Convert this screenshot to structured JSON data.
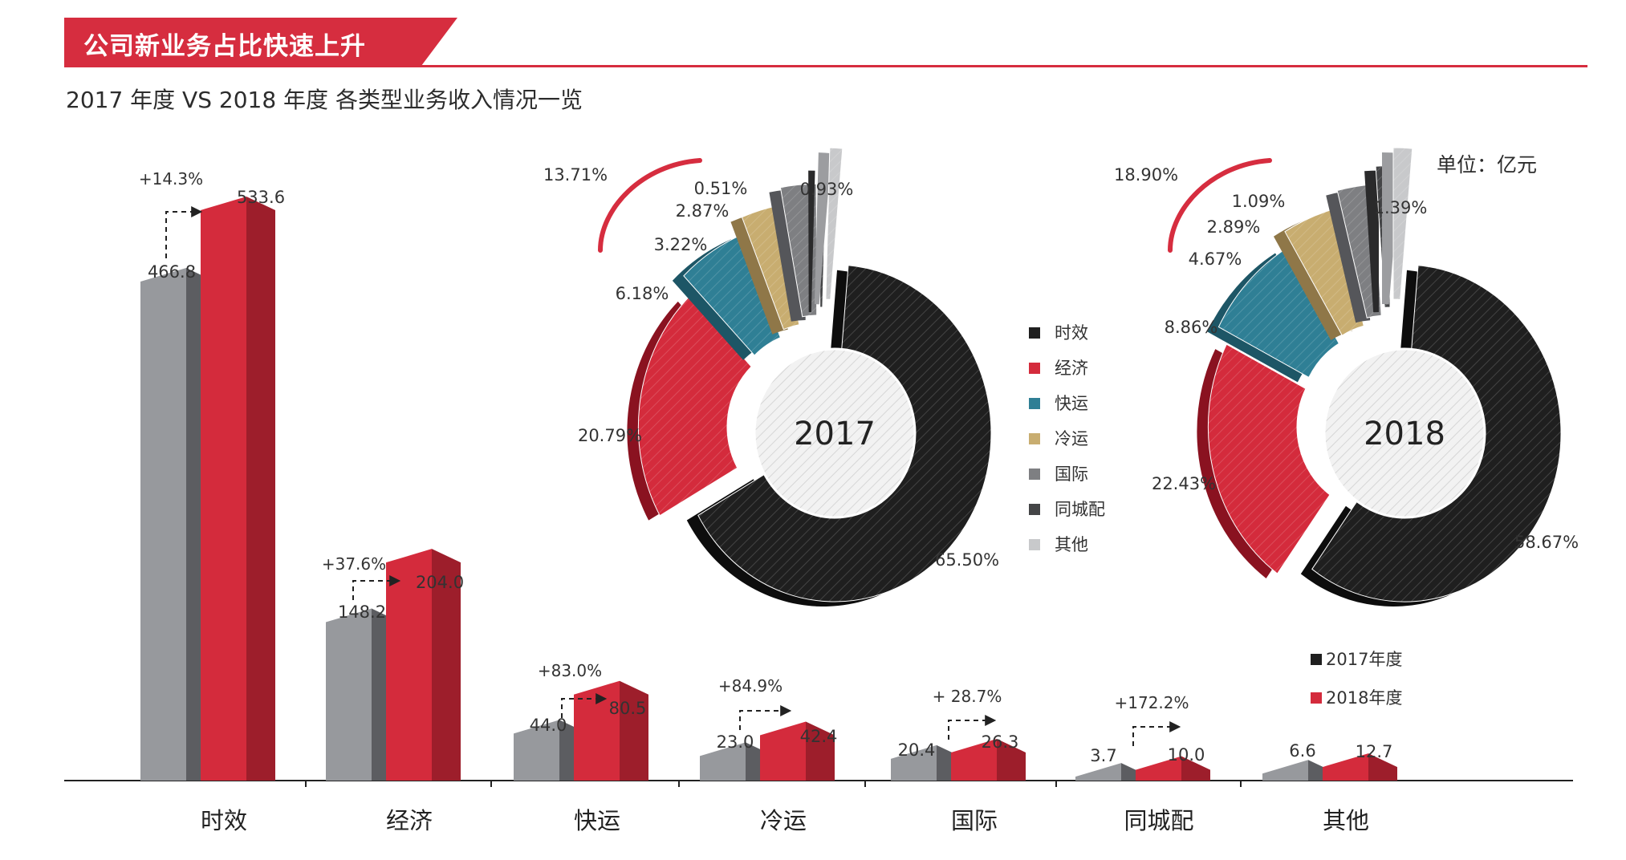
{
  "header": {
    "title": "公司新业务占比快速上升"
  },
  "subtitle": "2017 年度 VS 2018 年度 各类型业务收入情况一览",
  "unit": "单位：亿元",
  "colors": {
    "accent": "#d62d3f",
    "bar2017": "#97999d",
    "bar2017_side": "#5c5d61",
    "bar2018": "#d42b3c",
    "bar2018_side": "#9d1e2b"
  },
  "chart_data": [
    {
      "type": "bar",
      "title": "2017 年度 VS 2018 年度 各类型业务收入情况一览",
      "ylabel": "单位：亿元",
      "categories": [
        "时效",
        "经济",
        "快运",
        "冷运",
        "国际",
        "同城配",
        "其他"
      ],
      "series": [
        {
          "name": "2017年度",
          "values": [
            466.8,
            148.2,
            44.0,
            23.0,
            20.4,
            3.7,
            6.6
          ],
          "labels": [
            "466.8",
            "148.2",
            "44.0",
            "23.0",
            "20.4",
            "3.7",
            "6.6"
          ]
        },
        {
          "name": "2018年度",
          "values": [
            533.6,
            204.0,
            80.5,
            42.4,
            26.3,
            10.0,
            12.7
          ],
          "labels": [
            "533.6",
            "204.0",
            "80.5",
            "42.4",
            "26.3",
            "10.0",
            "12.7"
          ]
        }
      ],
      "growth": [
        "+14.3%",
        "+37.6%",
        "+83.0%",
        "+84.9%",
        "+ 28.7%",
        "+172.2%",
        ""
      ],
      "legend": [
        "2017年度",
        "2018年度"
      ],
      "ylim": [
        0,
        560
      ]
    },
    {
      "type": "pie",
      "title": "2017",
      "labels": [
        "时效",
        "经济",
        "快运",
        "冷运",
        "国际",
        "同城配",
        "其他"
      ],
      "values": [
        65.5,
        20.79,
        6.18,
        3.22,
        2.87,
        0.51,
        0.93
      ],
      "value_labels": [
        "65.50%",
        "20.79%",
        "6.18%",
        "3.22%",
        "2.87%",
        "0.51%",
        "0.93%"
      ],
      "new_business_share": "13.71%"
    },
    {
      "type": "pie",
      "title": "2018",
      "labels": [
        "时效",
        "经济",
        "快运",
        "冷运",
        "国际",
        "同城配",
        "其他"
      ],
      "values": [
        58.67,
        22.43,
        8.86,
        4.67,
        2.89,
        1.09,
        1.39
      ],
      "value_labels": [
        "58.67%",
        "22.43%",
        "8.86%",
        "4.67%",
        "2.89%",
        "1.09%",
        "1.39%"
      ],
      "new_business_share": "18.90%"
    }
  ],
  "pie_legend": [
    {
      "label": "时效",
      "color": "#1f1f1f"
    },
    {
      "label": "经济",
      "color": "#d42b3c"
    },
    {
      "label": "快运",
      "color": "#2f7f95"
    },
    {
      "label": "冷运",
      "color": "#c8ad70"
    },
    {
      "label": "国际",
      "color": "#7e7f82"
    },
    {
      "label": "同城配",
      "color": "#444547"
    },
    {
      "label": "其他",
      "color": "#c8c9cb"
    }
  ],
  "pie_side_colors": [
    "#0d0d0d",
    "#8a1220",
    "#1d5666",
    "#8f7748",
    "#55565a",
    "#2a2a2b",
    "#9c9da0"
  ]
}
